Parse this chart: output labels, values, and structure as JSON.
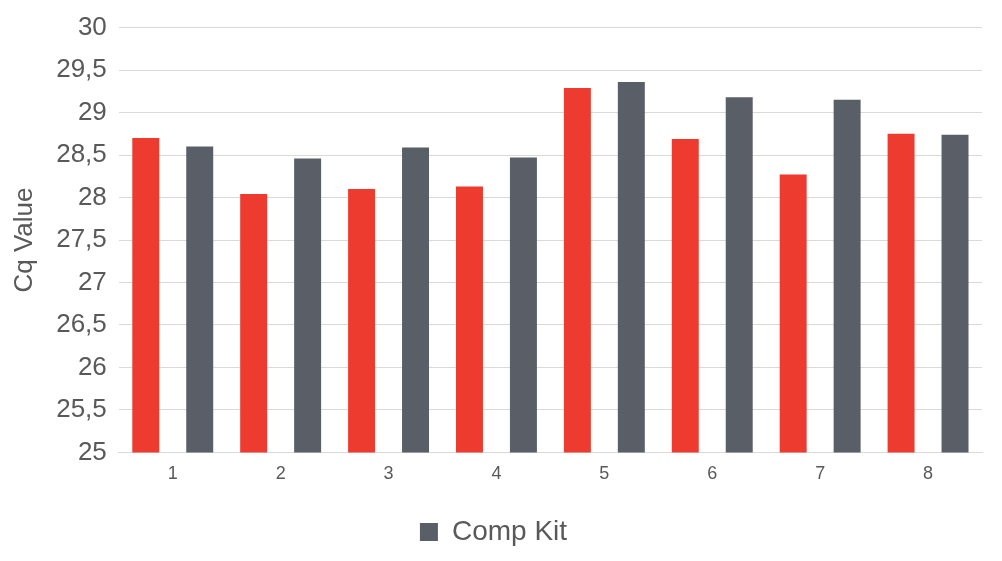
{
  "chart_data": {
    "type": "bar",
    "ylabel": "Cq Value",
    "categories": [
      "1",
      "2",
      "3",
      "4",
      "5",
      "6",
      "7",
      "8"
    ],
    "series": [
      {
        "color": "#ee3b30",
        "values": [
          28.7,
          28.04,
          28.1,
          28.13,
          29.29,
          28.69,
          28.27,
          28.75
        ]
      },
      {
        "name": "Comp Kit",
        "color": "#5a5e66",
        "values": [
          28.6,
          28.46,
          28.59,
          28.47,
          29.36,
          29.18,
          29.15,
          28.74
        ]
      }
    ],
    "ylim": [
      25,
      30
    ],
    "yticks": [
      25,
      {
        "value": 25.5,
        "label": "25,5"
      },
      26,
      {
        "value": 26.5,
        "label": "26,5"
      },
      27,
      {
        "value": 27.5,
        "label": "27,5"
      },
      28,
      {
        "value": 28.5,
        "label": "28,5"
      },
      29,
      {
        "value": 29.5,
        "label": "29,5"
      },
      30
    ],
    "grid": "y",
    "legend": "bottom"
  }
}
